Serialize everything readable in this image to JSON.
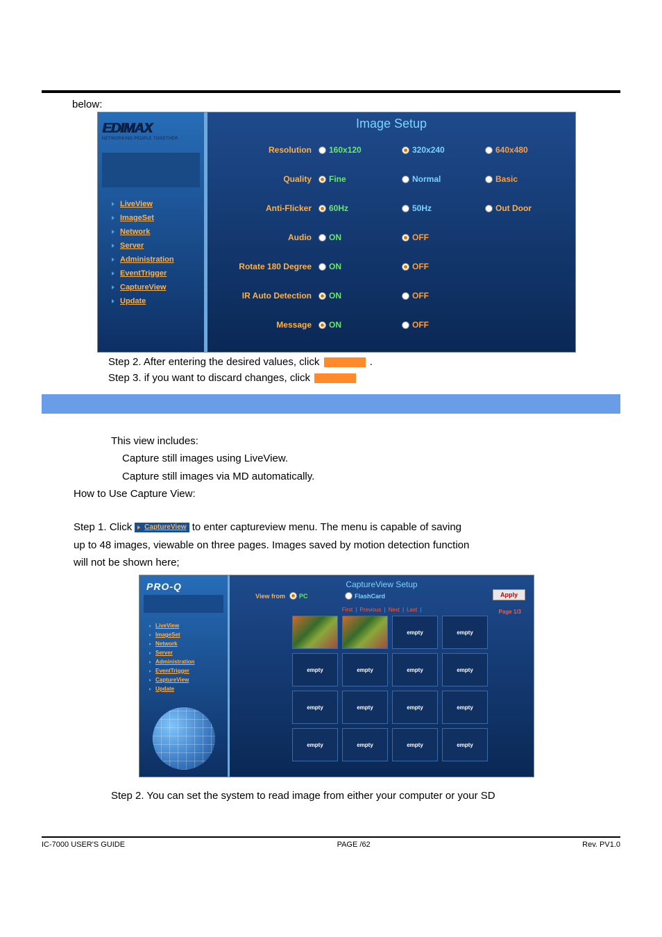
{
  "colors": {
    "page_bg": "#ffffff",
    "rule": "#000000",
    "orange_blank": "#ff8a2c",
    "section_bar": "#6a9de8",
    "screenshot_bg_top": "#1e4a8c",
    "screenshot_bg_bottom": "#0a2855",
    "sidebar_bg_top": "#276db8",
    "sidebar_bg_bottom": "#0d2f63",
    "sidebar_border": "#6ea8dc",
    "sidebar_link": "#ffb049",
    "sidebar_bullet": "#48a0e8",
    "title_color": "#7bd4ff",
    "label_color": "#ffb049",
    "opt_green": "#6be86b",
    "opt_orange": "#ff9e3c",
    "opt_blue": "#7bd4ff",
    "opt_red": "#ff5a3c",
    "apply_text": "#c00000"
  },
  "intro_label": "below:",
  "imgset": {
    "logo": "EDIMAX",
    "logo_sub": "NETWORKING PEOPLE TOGETHER",
    "sidebar_items": [
      "LiveView",
      "ImageSet",
      "Network",
      "Server",
      "Administration",
      "EventTrigger",
      "CaptureView",
      "Update"
    ],
    "title": "Image Setup",
    "rows": [
      {
        "label": "Resolution",
        "opts": [
          "160x120",
          "320x240",
          "640x480"
        ],
        "selected": 1,
        "colors": [
          "t-on",
          "t-blue",
          "t-off"
        ]
      },
      {
        "label": "Quality",
        "opts": [
          "Fine",
          "Normal",
          "Basic"
        ],
        "selected": 0,
        "colors": [
          "t-on",
          "t-blue",
          "t-off"
        ]
      },
      {
        "label": "Anti-Flicker",
        "opts": [
          "60Hz",
          "50Hz",
          "Out Door"
        ],
        "selected": 0,
        "colors": [
          "t-on",
          "t-blue",
          "t-orange"
        ]
      },
      {
        "label": "Audio",
        "opts": [
          "ON",
          "OFF"
        ],
        "selected": 1,
        "colors": [
          "t-on",
          "t-off"
        ]
      },
      {
        "label": "Rotate 180 Degree",
        "opts": [
          "ON",
          "OFF"
        ],
        "selected": 1,
        "colors": [
          "t-on",
          "t-off"
        ]
      },
      {
        "label": "IR Auto Detection",
        "opts": [
          "ON",
          "OFF"
        ],
        "selected": 0,
        "colors": [
          "t-on",
          "t-off"
        ]
      },
      {
        "label": "Message",
        "opts": [
          "ON",
          "OFF"
        ],
        "selected": 0,
        "colors": [
          "t-on",
          "t-off"
        ]
      }
    ]
  },
  "below_steps": {
    "s2a": "Step 2. After entering the desired values, click ",
    "s2b": ".",
    "s3a": "Step 3. if you want to discard changes, click "
  },
  "body": {
    "l1": "This view includes:",
    "l2": "Capture still images using LiveView.",
    "l3": "Capture still images via MD automatically.",
    "l4": "How to Use Capture View:",
    "l5a": "Step 1. Click ",
    "l5btn": "CaptureView",
    "l5b": " to enter captureview menu. The menu is capable of saving",
    "l6": "up to 48 images, viewable on three pages. Images saved by motion detection function",
    "l7": "will not be shown here;"
  },
  "capview": {
    "logo": "PRO-Q",
    "sidebar_items": [
      "LiveView",
      "ImageSet",
      "Network",
      "Server",
      "Administration",
      "EventTrigger",
      "CaptureView",
      "Update"
    ],
    "title": "CaptureView Setup",
    "view_from": "View from",
    "opt_pc": "PC",
    "opt_flash": "FlashCard",
    "apply": "Apply",
    "nav": [
      "First",
      "Previous",
      "Next",
      "Last"
    ],
    "page": "Page 1/3",
    "empty": "empty",
    "grid_rows": 4,
    "grid_cols": 4,
    "thumbs_in_row0": 2
  },
  "step2_bottom": "Step 2. You can set the system to read image from either your computer or your SD",
  "footer": {
    "left": "IC-7000 USER'S GUIDE",
    "center": "PAGE    /62",
    "right": "Rev. PV1.0"
  }
}
